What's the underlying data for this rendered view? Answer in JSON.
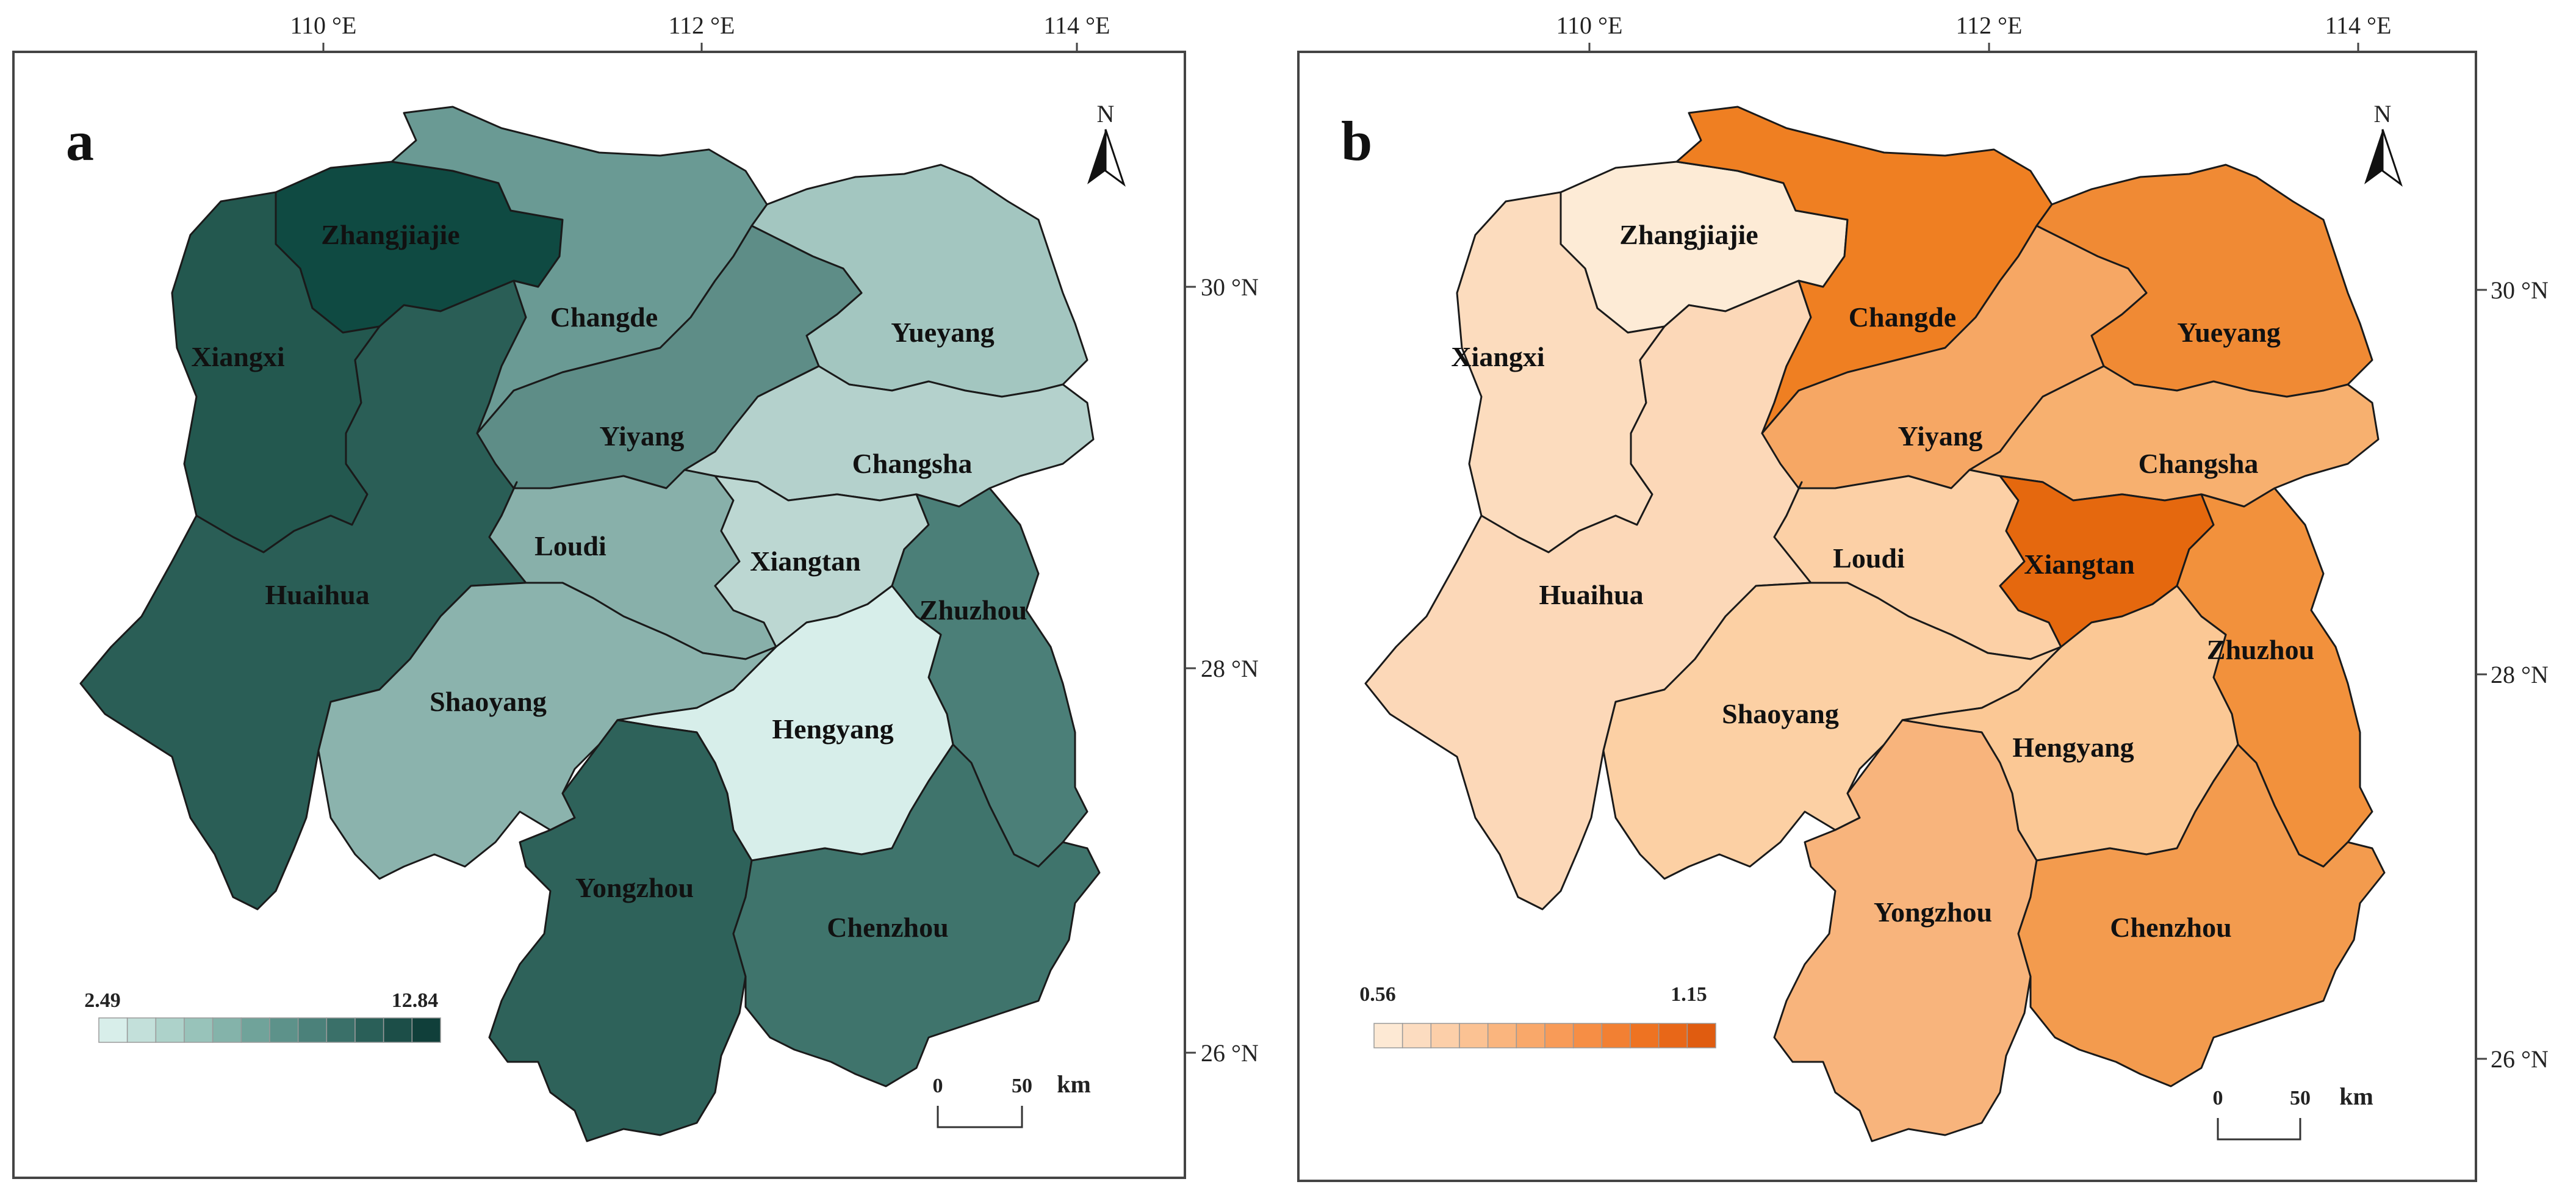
{
  "figure": {
    "panels": [
      {
        "letter": "a",
        "legend": {
          "min": "2.49",
          "max": "12.84",
          "colors": [
            "#d8eeea",
            "#c3e0da",
            "#add2ca",
            "#98c3ba",
            "#84b3aa",
            "#70a39a",
            "#5d928a",
            "#4b817a",
            "#3a7069",
            "#2a5f58",
            "#1c4e48",
            "#103f3a"
          ]
        },
        "scale": {
          "zero": "0",
          "fifty": "50",
          "unit": "km"
        },
        "north": "N",
        "lon_ticks": [
          "110 °E",
          "112 °E",
          "114 °E"
        ],
        "lat_ticks": [
          "30 °N",
          "28 °N",
          "26 °N"
        ],
        "regions": [
          {
            "name": "Zhangjiajie",
            "value": 12.84,
            "color": "#0f4a42"
          },
          {
            "name": "Xiangxi",
            "value": 10.8,
            "color": "#23584f"
          },
          {
            "name": "Huaihua",
            "value": 10.6,
            "color": "#2a5e56"
          },
          {
            "name": "Changde",
            "value": 7.6,
            "color": "#6a9a94"
          },
          {
            "name": "Yueyang",
            "value": 4.8,
            "color": "#a3c6c0"
          },
          {
            "name": "Yiyang",
            "value": 8.2,
            "color": "#5e8d87"
          },
          {
            "name": "Changsha",
            "value": 4.3,
            "color": "#b4d1cc"
          },
          {
            "name": "Loudi",
            "value": 6.2,
            "color": "#88b0aa"
          },
          {
            "name": "Xiangtan",
            "value": 4.0,
            "color": "#bcd7d2"
          },
          {
            "name": "Zhuzhou",
            "value": 9.2,
            "color": "#4b7f78"
          },
          {
            "name": "Shaoyang",
            "value": 6.3,
            "color": "#8bb3ad"
          },
          {
            "name": "Hengyang",
            "value": 2.49,
            "color": "#d7eeea"
          },
          {
            "name": "Yongzhou",
            "value": 10.3,
            "color": "#2e625a"
          },
          {
            "name": "Chenzhou",
            "value": 9.7,
            "color": "#3f746c"
          }
        ]
      },
      {
        "letter": "b",
        "legend": {
          "min": "0.56",
          "max": "1.15",
          "colors": [
            "#fde9d4",
            "#fcdcc0",
            "#fccfa9",
            "#fbc293",
            "#fab57e",
            "#f9a86a",
            "#f89b58",
            "#f68e45",
            "#f28033",
            "#ee7322",
            "#e86718",
            "#e05c10"
          ]
        },
        "scale": {
          "zero": "0",
          "fifty": "50",
          "unit": "km"
        },
        "north": "N",
        "lon_ticks": [
          "110 °E",
          "112 °E",
          "114 °E"
        ],
        "lat_ticks": [
          "30 °N",
          "28 °N",
          "26 °N"
        ],
        "regions": [
          {
            "name": "Zhangjiajie",
            "value": 0.56,
            "color": "#fdebd6"
          },
          {
            "name": "Xiangxi",
            "value": 0.6,
            "color": "#fcdcbe"
          },
          {
            "name": "Huaihua",
            "value": 0.62,
            "color": "#fcd8b8"
          },
          {
            "name": "Changde",
            "value": 1.08,
            "color": "#ef7f22"
          },
          {
            "name": "Yueyang",
            "value": 1.02,
            "color": "#f08a34"
          },
          {
            "name": "Yiyang",
            "value": 0.86,
            "color": "#f6a764"
          },
          {
            "name": "Changsha",
            "value": 0.84,
            "color": "#f7b06f"
          },
          {
            "name": "Loudi",
            "value": 0.68,
            "color": "#fcd0a6"
          },
          {
            "name": "Xiangtan",
            "value": 1.15,
            "color": "#e5680e"
          },
          {
            "name": "Zhuzhou",
            "value": 1.0,
            "color": "#f2913c"
          },
          {
            "name": "Shaoyang",
            "value": 0.66,
            "color": "#fcd0a4"
          },
          {
            "name": "Hengyang",
            "value": 0.72,
            "color": "#fbc895"
          },
          {
            "name": "Yongzhou",
            "value": 0.8,
            "color": "#f8b47c"
          },
          {
            "name": "Chenzhou",
            "value": 0.94,
            "color": "#f39b4e"
          }
        ]
      }
    ]
  }
}
